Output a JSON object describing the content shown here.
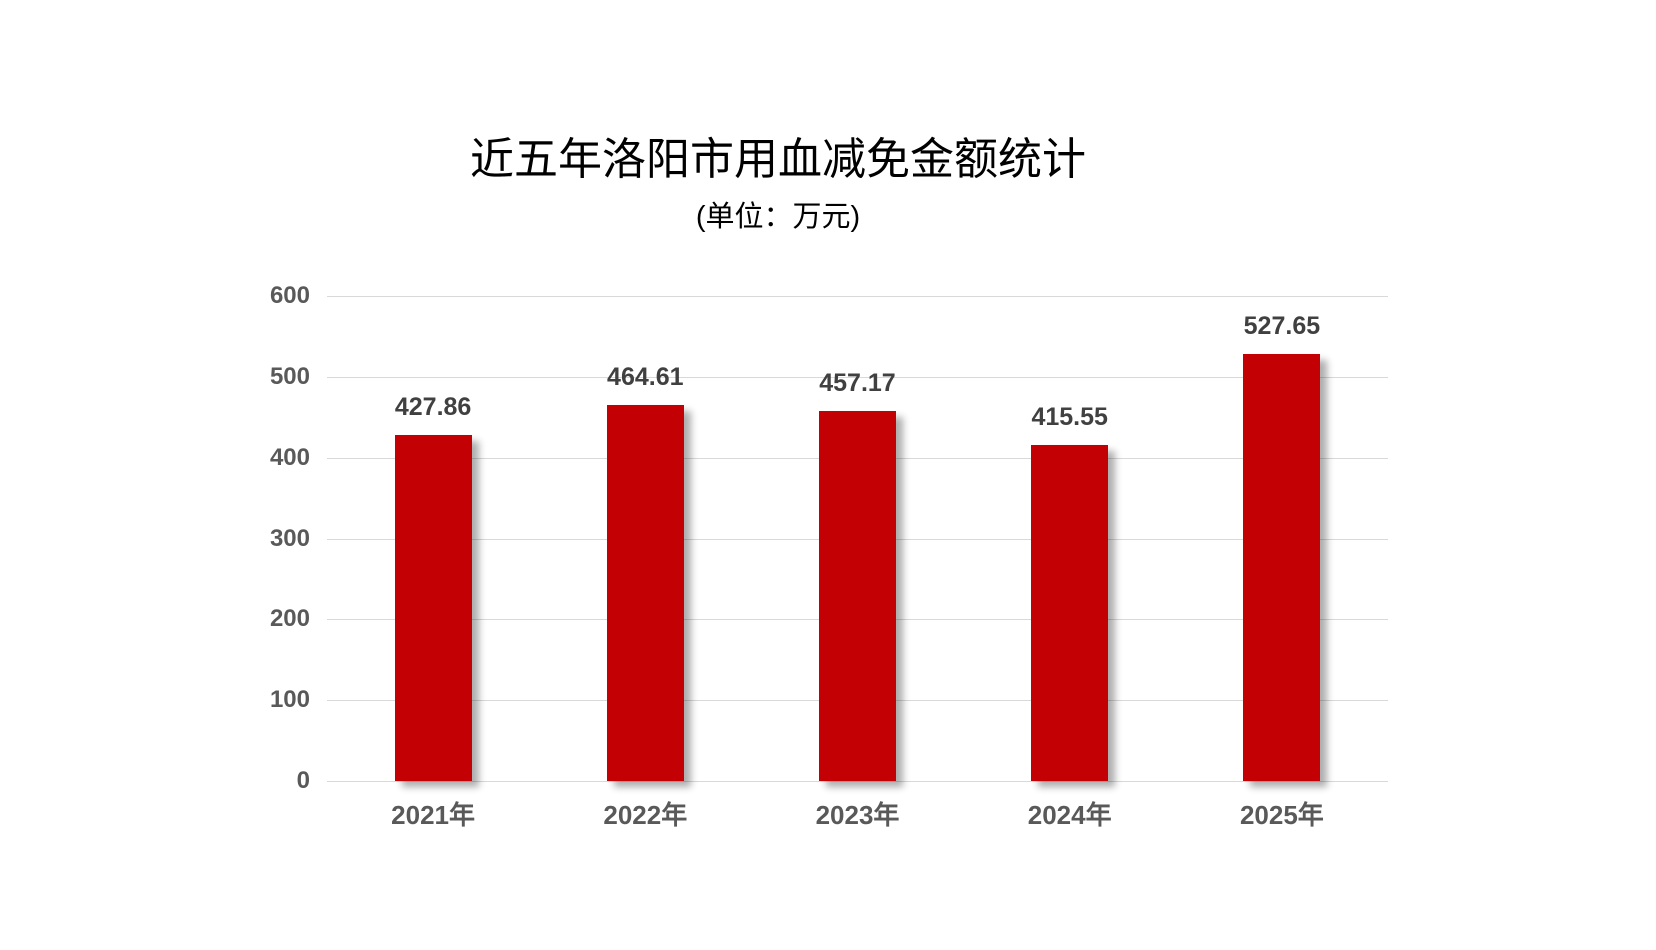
{
  "chart_data": {
    "type": "bar",
    "title": "近五年洛阳市用血减免金额统计",
    "subtitle": "(单位：万元)",
    "categories": [
      "2021年",
      "2022年",
      "2023年",
      "2024年",
      "2025年"
    ],
    "values": [
      427.86,
      464.61,
      457.17,
      415.55,
      527.65
    ],
    "value_labels": [
      "427.86",
      "464.61",
      "457.17",
      "415.55",
      "527.65"
    ],
    "xlabel": "",
    "ylabel": "",
    "ylim": [
      0,
      600
    ],
    "yticks": [
      0,
      100,
      200,
      300,
      400,
      500,
      600
    ],
    "grid": true,
    "legend_position": "none",
    "colors": {
      "bar": "#c30004",
      "gridline": "#d9d9d9",
      "y_tick_label": "#595959",
      "x_tick_label": "#595959",
      "value_label": "#404040",
      "title": "#000000",
      "background": "#ffffff"
    }
  }
}
